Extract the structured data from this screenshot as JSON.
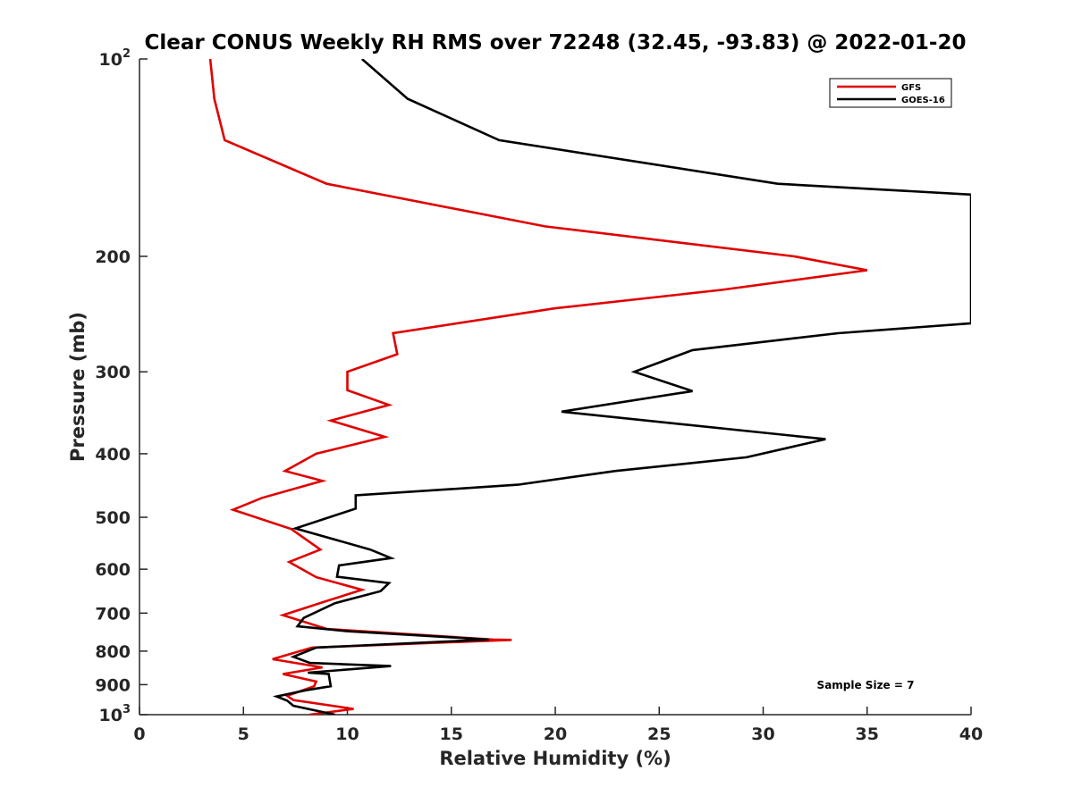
{
  "chart_data": {
    "type": "line",
    "title": "Clear CONUS Weekly RH RMS over 72248 (32.45, -93.83) @ 2022-01-20",
    "xlabel": "Relative Humidity (%)",
    "ylabel": "Pressure (mb)",
    "xlim": [
      0,
      40
    ],
    "ylim": [
      100,
      1000
    ],
    "yscale": "log",
    "y_reversed": true,
    "x_ticks": [
      0,
      5,
      10,
      15,
      20,
      25,
      30,
      35,
      40
    ],
    "x_tick_labels": [
      "0",
      "5",
      "10",
      "15",
      "20",
      "25",
      "30",
      "35",
      "40"
    ],
    "y_ticks": [
      100,
      200,
      300,
      400,
      500,
      600,
      700,
      800,
      900,
      1000
    ],
    "y_tick_labels": [
      {
        "base": "10",
        "exp": "2"
      },
      "200",
      "300",
      "400",
      "500",
      "600",
      "700",
      "800",
      "900",
      {
        "base": "10",
        "exp": "3"
      }
    ],
    "legend_position": "top-right",
    "annotation": "Sample Size = 7",
    "series": [
      {
        "name": "GFS",
        "color": "#e00000",
        "points": [
          [
            3.4,
            100
          ],
          [
            3.6,
            115
          ],
          [
            4.1,
            133
          ],
          [
            9.0,
            155
          ],
          [
            19.5,
            180
          ],
          [
            31.5,
            200
          ],
          [
            35.0,
            210
          ],
          [
            28.0,
            225
          ],
          [
            20.0,
            240
          ],
          [
            12.2,
            262
          ],
          [
            12.4,
            282
          ],
          [
            10.0,
            300
          ],
          [
            10.0,
            320
          ],
          [
            12.0,
            337
          ],
          [
            9.2,
            356
          ],
          [
            11.8,
            377
          ],
          [
            8.5,
            400
          ],
          [
            7.0,
            425
          ],
          [
            8.8,
            440
          ],
          [
            5.9,
            467
          ],
          [
            4.5,
            487
          ],
          [
            7.3,
            521
          ],
          [
            8.7,
            560
          ],
          [
            7.2,
            585
          ],
          [
            8.5,
            617
          ],
          [
            10.7,
            645
          ],
          [
            9.0,
            671
          ],
          [
            6.9,
            705
          ],
          [
            9.0,
            740
          ],
          [
            17.0,
            768
          ],
          [
            17.9,
            769
          ],
          [
            8.3,
            790
          ],
          [
            6.4,
            823
          ],
          [
            8.8,
            847
          ],
          [
            6.9,
            867
          ],
          [
            8.5,
            890
          ],
          [
            8.4,
            905
          ],
          [
            7.1,
            936
          ],
          [
            7.4,
            950
          ],
          [
            10.3,
            980
          ],
          [
            8.2,
            1000
          ]
        ]
      },
      {
        "name": "GOES-16",
        "color": "#000000",
        "points": [
          [
            10.7,
            100
          ],
          [
            12.9,
            115
          ],
          [
            17.3,
            133
          ],
          [
            30.7,
            155
          ],
          [
            40.0,
            161
          ],
          [
            40.0,
            253
          ],
          [
            33.6,
            262
          ],
          [
            26.6,
            278
          ],
          [
            23.8,
            300
          ],
          [
            26.6,
            321
          ],
          [
            20.3,
            345
          ],
          [
            33.0,
            380
          ],
          [
            29.2,
            405
          ],
          [
            22.9,
            425
          ],
          [
            18.2,
            446
          ],
          [
            10.4,
            463
          ],
          [
            10.4,
            485
          ],
          [
            7.5,
            520
          ],
          [
            11.1,
            560
          ],
          [
            12.1,
            577
          ],
          [
            9.6,
            592
          ],
          [
            9.5,
            616
          ],
          [
            12.0,
            630
          ],
          [
            11.6,
            648
          ],
          [
            9.4,
            676
          ],
          [
            7.9,
            712
          ],
          [
            7.6,
            733
          ],
          [
            10.0,
            746
          ],
          [
            16.8,
            768
          ],
          [
            8.5,
            790
          ],
          [
            7.4,
            816
          ],
          [
            8.2,
            834
          ],
          [
            12.1,
            843
          ],
          [
            8.1,
            863
          ],
          [
            9.1,
            867
          ],
          [
            9.2,
            905
          ],
          [
            8.0,
            918
          ],
          [
            6.6,
            938
          ],
          [
            7.1,
            952
          ],
          [
            7.4,
            969
          ],
          [
            9.4,
            1000
          ]
        ]
      }
    ]
  }
}
